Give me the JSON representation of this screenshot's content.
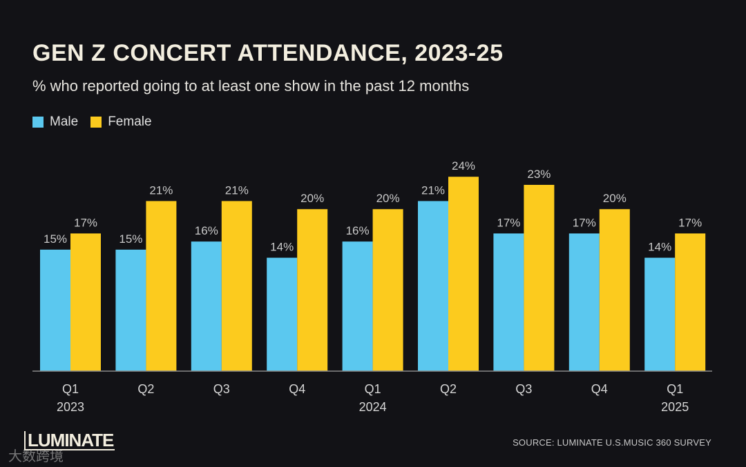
{
  "chart_data": {
    "type": "bar",
    "title": "GEN Z CONCERT ATTENDANCE, 2023-25",
    "subtitle": "% who reported going to at least one show in the past 12 months",
    "categories": [
      [
        "Q1",
        "2023"
      ],
      [
        "Q2",
        ""
      ],
      [
        "Q3",
        ""
      ],
      [
        "Q4",
        ""
      ],
      [
        "Q1",
        "2024"
      ],
      [
        "Q2",
        ""
      ],
      [
        "Q3",
        ""
      ],
      [
        "Q4",
        ""
      ],
      [
        "Q1",
        "2025"
      ]
    ],
    "series": [
      {
        "name": "Male",
        "color": "#5bc8ef",
        "values": [
          15,
          15,
          16,
          14,
          16,
          21,
          17,
          17,
          14
        ]
      },
      {
        "name": "Female",
        "color": "#fccb1e",
        "values": [
          17,
          21,
          21,
          20,
          20,
          24,
          23,
          20,
          17
        ]
      }
    ],
    "value_suffix": "%",
    "xlabel": "",
    "ylabel": "",
    "ylim": [
      0,
      25
    ],
    "grid": false,
    "legend": "top-left"
  },
  "footer": {
    "source": "SOURCE: LUMINATE U.S.MUSIC 360 SURVEY",
    "logo": "LUMINATE",
    "watermark": "大数跨境"
  }
}
